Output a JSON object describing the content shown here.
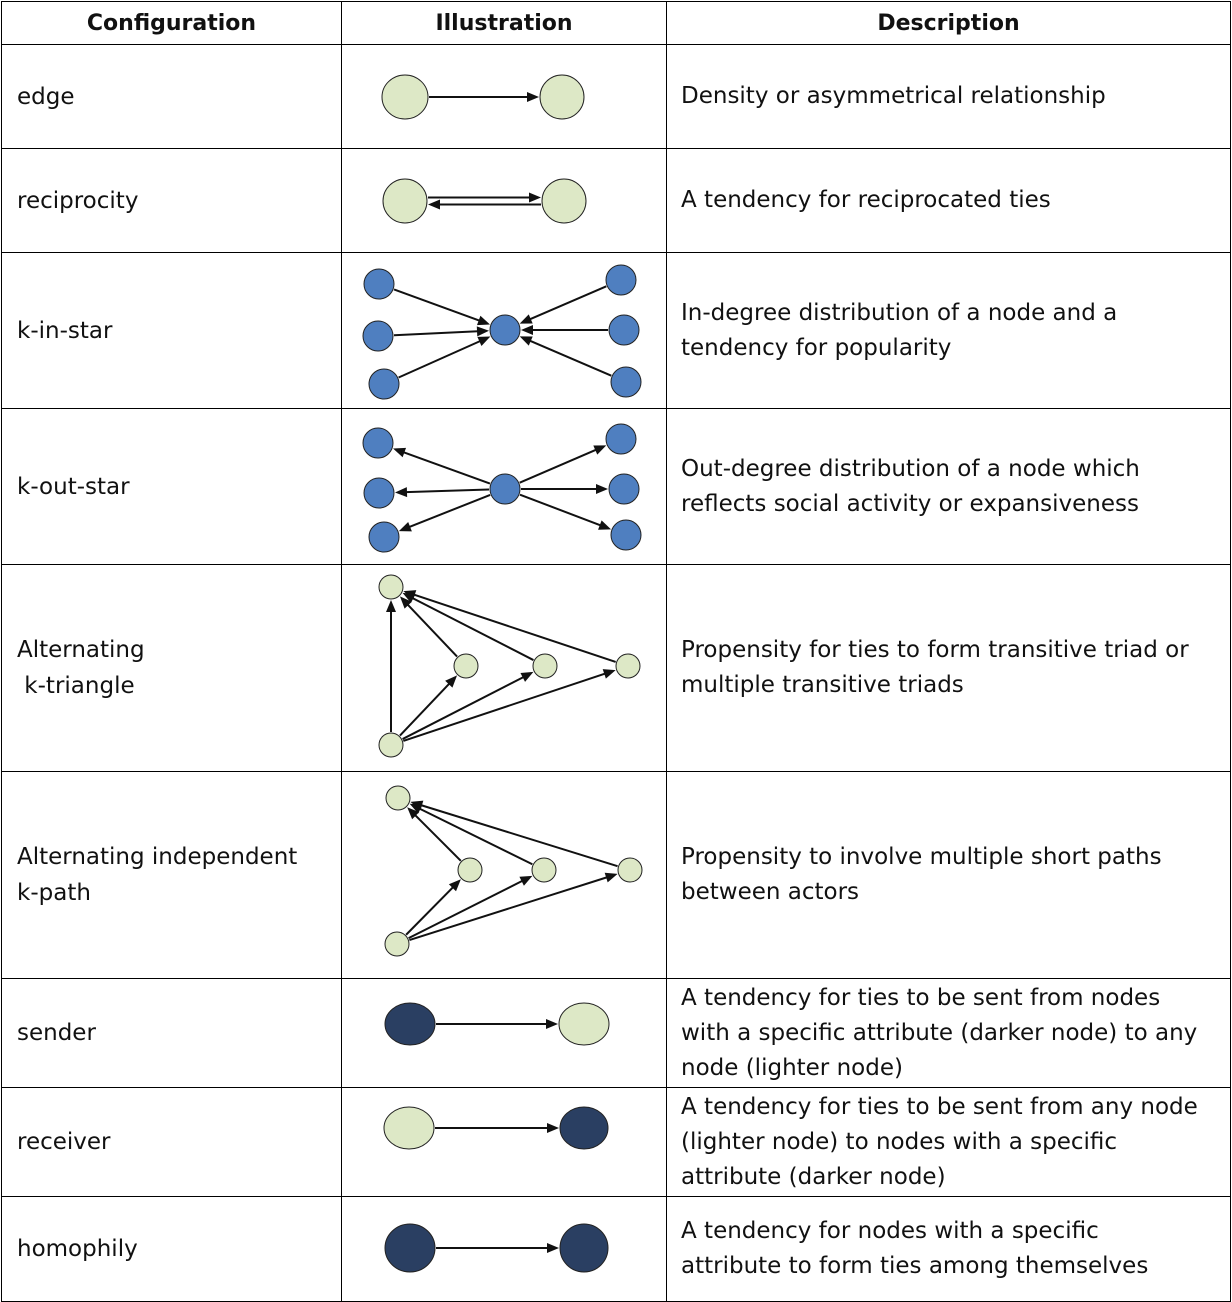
{
  "header": {
    "configuration": "Configuration",
    "illustration": "Illustration",
    "description": "Description"
  },
  "colors": {
    "light_node": "#dde8c6",
    "blue_node": "#4f7fc0",
    "dark_node": "#2a3f62",
    "edge": "#111111"
  },
  "rows": [
    {
      "config": [
        "edge"
      ],
      "description": [
        "Density or asymmetrical relationship"
      ],
      "illustration": "edge"
    },
    {
      "config": [
        "reciprocity"
      ],
      "description": [
        "A tendency for reciprocated ties"
      ],
      "illustration": "reciprocity"
    },
    {
      "config": [
        "k-in-star"
      ],
      "description": [
        "In-degree distribution of a node and a",
        "tendency for popularity"
      ],
      "illustration": "k-in-star"
    },
    {
      "config": [
        "k-out-star"
      ],
      "description": [
        "Out-degree distribution of a node which",
        "reflects social activity or expansiveness"
      ],
      "illustration": "k-out-star"
    },
    {
      "config": [
        "Alternating",
        " k-triangle"
      ],
      "description": [
        "Propensity for ties to form transitive triad or",
        "multiple transitive triads"
      ],
      "illustration": "alternating-k-triangle"
    },
    {
      "config": [
        "Alternating independent",
        "k-path"
      ],
      "description": [
        "Propensity to involve multiple short paths",
        "between actors"
      ],
      "illustration": "alternating-independent-k-path"
    },
    {
      "config": [
        "sender"
      ],
      "description": [
        "A tendency for ties to be sent from nodes",
        "with a specific attribute (darker node) to any",
        "node (lighter node)"
      ],
      "illustration": "sender"
    },
    {
      "config": [
        "receiver"
      ],
      "description": [
        "A tendency for ties to be sent from any node",
        "(lighter node) to nodes with a specific",
        "attribute (darker node)"
      ],
      "illustration": "receiver"
    },
    {
      "config": [
        "homophily"
      ],
      "description": [
        "A tendency for nodes with a specific",
        "attribute to form ties among themselves"
      ],
      "illustration": "homophily"
    }
  ]
}
